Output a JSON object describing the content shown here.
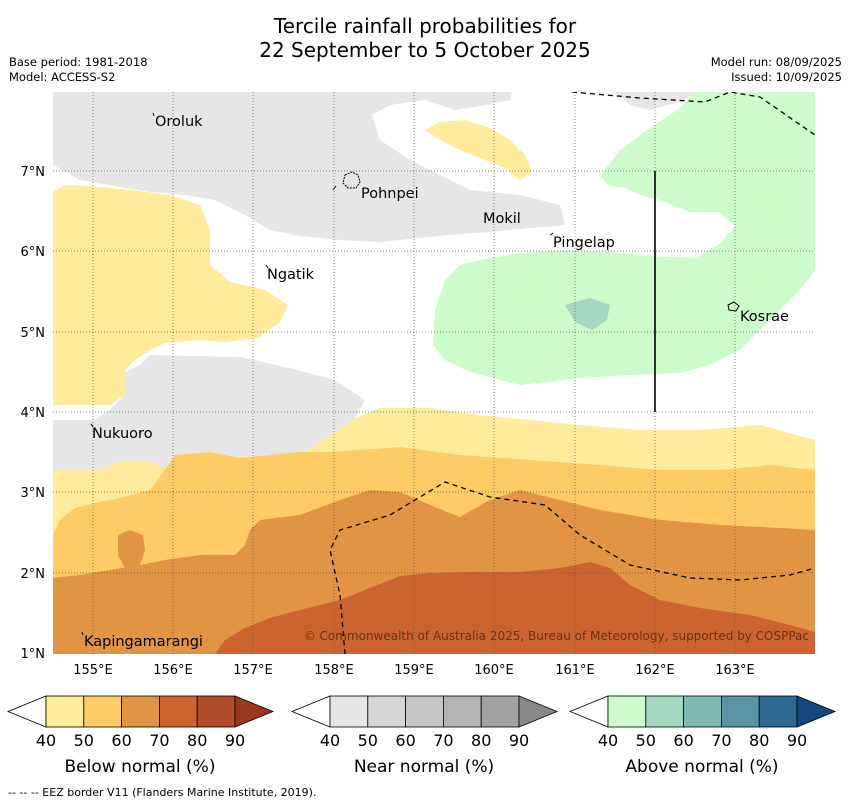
{
  "title_line1": "Tercile rainfall probabilities for",
  "title_line2": "22 September to 5 October 2025",
  "base_period": "Base period: 1981-2018",
  "model": "Model: ACCESS-S2",
  "model_run": "Model run: 08/09/2025",
  "issued": "Issued: 10/09/2025",
  "copyright": "© Commonwealth of Australia 2025, Bureau of Meteorology, supported by COSPPac",
  "footnote": "-- -- -- EEZ border V11 (Flanders Marine Institute, 2019).",
  "lat_labels": [
    "7°N",
    "6°N",
    "5°N",
    "4°N",
    "3°N",
    "2°N",
    "1°N"
  ],
  "lon_labels": [
    "155°E",
    "156°E",
    "157°E",
    "158°E",
    "159°E",
    "160°E",
    "161°E",
    "162°E",
    "163°E"
  ],
  "places": {
    "oroluk": "Oroluk",
    "pohnpei": "Pohnpei",
    "mokil": "Mokil",
    "pingelap": "Pingelap",
    "ngatik": "Ngatik",
    "kosrae": "Kosrae",
    "nukuoro": "Nukuoro",
    "kapingamarangi": "Kapingamarangi"
  },
  "colorbars": [
    {
      "title": "Below normal (%)",
      "ticks": [
        "40",
        "50",
        "60",
        "70",
        "80",
        "90"
      ],
      "colors": [
        "#ffffff",
        "#ffeb9c",
        "#fecb64",
        "#e09444",
        "#cc6432",
        "#b04c2c",
        "#98381c"
      ]
    },
    {
      "title": "Near normal (%)",
      "ticks": [
        "40",
        "50",
        "60",
        "70",
        "80",
        "90"
      ],
      "colors": [
        "#ffffff",
        "#e6e6e6",
        "#d6d6d6",
        "#c6c6c6",
        "#b4b4b4",
        "#a2a2a2",
        "#888888"
      ]
    },
    {
      "title": "Above normal (%)",
      "ticks": [
        "40",
        "50",
        "60",
        "70",
        "80",
        "90"
      ],
      "colors": [
        "#ffffff",
        "#ccfccc",
        "#a4d8c0",
        "#80b8b4",
        "#5894a4",
        "#306894",
        "#14487c"
      ]
    }
  ]
}
